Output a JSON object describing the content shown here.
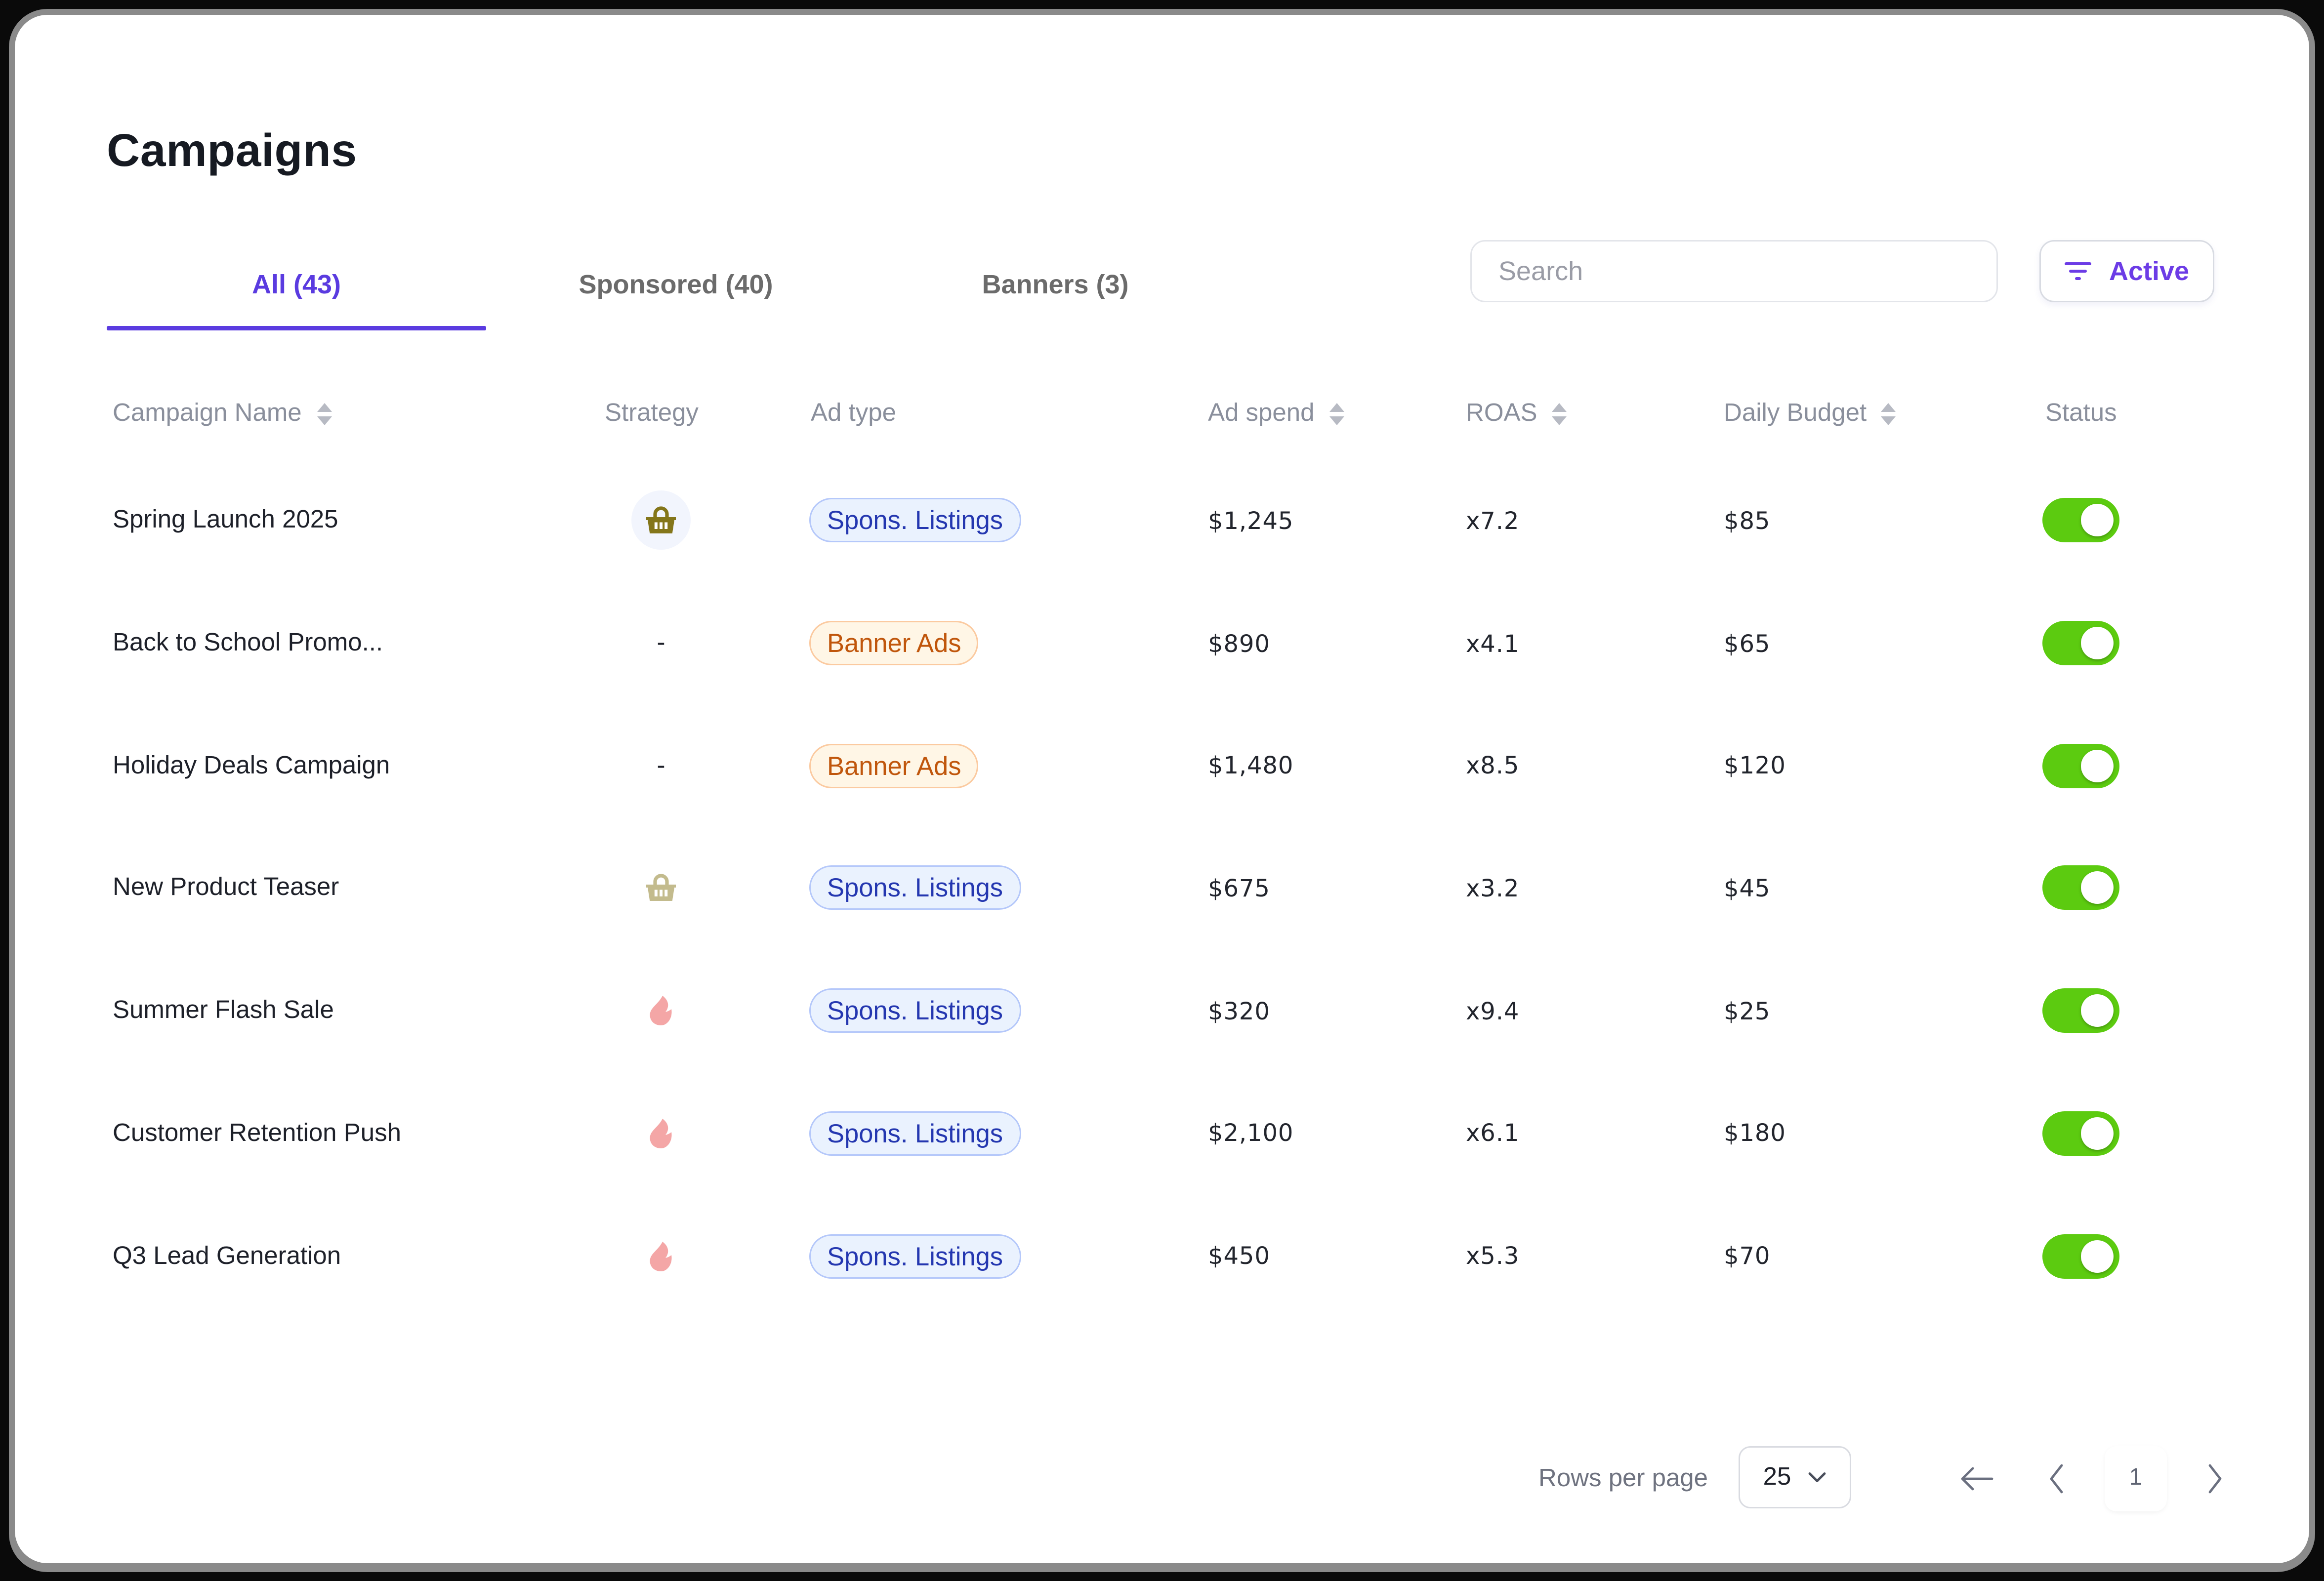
{
  "page": {
    "title": "Campaigns"
  },
  "tabs": [
    {
      "label": "All (43)",
      "active": true
    },
    {
      "label": "Sponsored (40)",
      "active": false
    },
    {
      "label": "Banners (3)",
      "active": false
    }
  ],
  "search": {
    "placeholder": "Search",
    "value": ""
  },
  "filter": {
    "label": "Active",
    "icon": "filter-lines-icon"
  },
  "table": {
    "columns": [
      {
        "label": "Campaign Name",
        "sortable": true
      },
      {
        "label": "Strategy",
        "sortable": false
      },
      {
        "label": "Ad type",
        "sortable": false
      },
      {
        "label": "Ad spend",
        "sortable": true
      },
      {
        "label": "ROAS",
        "sortable": true
      },
      {
        "label": "Daily Budget",
        "sortable": true
      },
      {
        "label": "Status",
        "sortable": false
      }
    ],
    "rows": [
      {
        "name": "Spring Launch 2025",
        "strategy": "basket-icon-highlighted",
        "strategy_text": "",
        "ad_type": "Spons. Listings",
        "ad_spend": "$1,245",
        "roas": "x7.2",
        "daily_budget": "$85",
        "status": "on"
      },
      {
        "name": "Back to School Promo...",
        "strategy": "none",
        "strategy_text": "-",
        "ad_type": "Banner Ads",
        "ad_spend": "$890",
        "roas": "x4.1",
        "daily_budget": "$65",
        "status": "on"
      },
      {
        "name": "Holiday Deals Campaign",
        "strategy": "none",
        "strategy_text": "-",
        "ad_type": "Banner Ads",
        "ad_spend": "$1,480",
        "roas": "x8.5",
        "daily_budget": "$120",
        "status": "on"
      },
      {
        "name": "New Product Teaser",
        "strategy": "basket-icon-muted",
        "strategy_text": "",
        "ad_type": "Spons. Listings",
        "ad_spend": "$675",
        "roas": "x3.2",
        "daily_budget": "$45",
        "status": "on"
      },
      {
        "name": "Summer Flash Sale",
        "strategy": "flame-icon",
        "strategy_text": "",
        "ad_type": "Spons. Listings",
        "ad_spend": "$320",
        "roas": "x9.4",
        "daily_budget": "$25",
        "status": "on"
      },
      {
        "name": "Customer Retention Push",
        "strategy": "flame-icon",
        "strategy_text": "",
        "ad_type": "Spons. Listings",
        "ad_spend": "$2,100",
        "roas": "x6.1",
        "daily_budget": "$180",
        "status": "on"
      },
      {
        "name": "Q3 Lead Generation",
        "strategy": "flame-icon",
        "strategy_text": "",
        "ad_type": "Spons. Listings",
        "ad_spend": "$450",
        "roas": "x5.3",
        "daily_budget": "$70",
        "status": "on"
      }
    ]
  },
  "pagination": {
    "rows_per_page_label": "Rows per page",
    "rows_per_page_value": "25",
    "current_page": "1"
  },
  "colors": {
    "accent": "#5a3be0",
    "toggle_on": "#5ccb10",
    "basket_strong": "#84761a",
    "basket_muted": "#c3bb8d",
    "flame": "#f4a6a6",
    "sponsored_text": "#2437b0",
    "banner_text": "#c0560c"
  }
}
